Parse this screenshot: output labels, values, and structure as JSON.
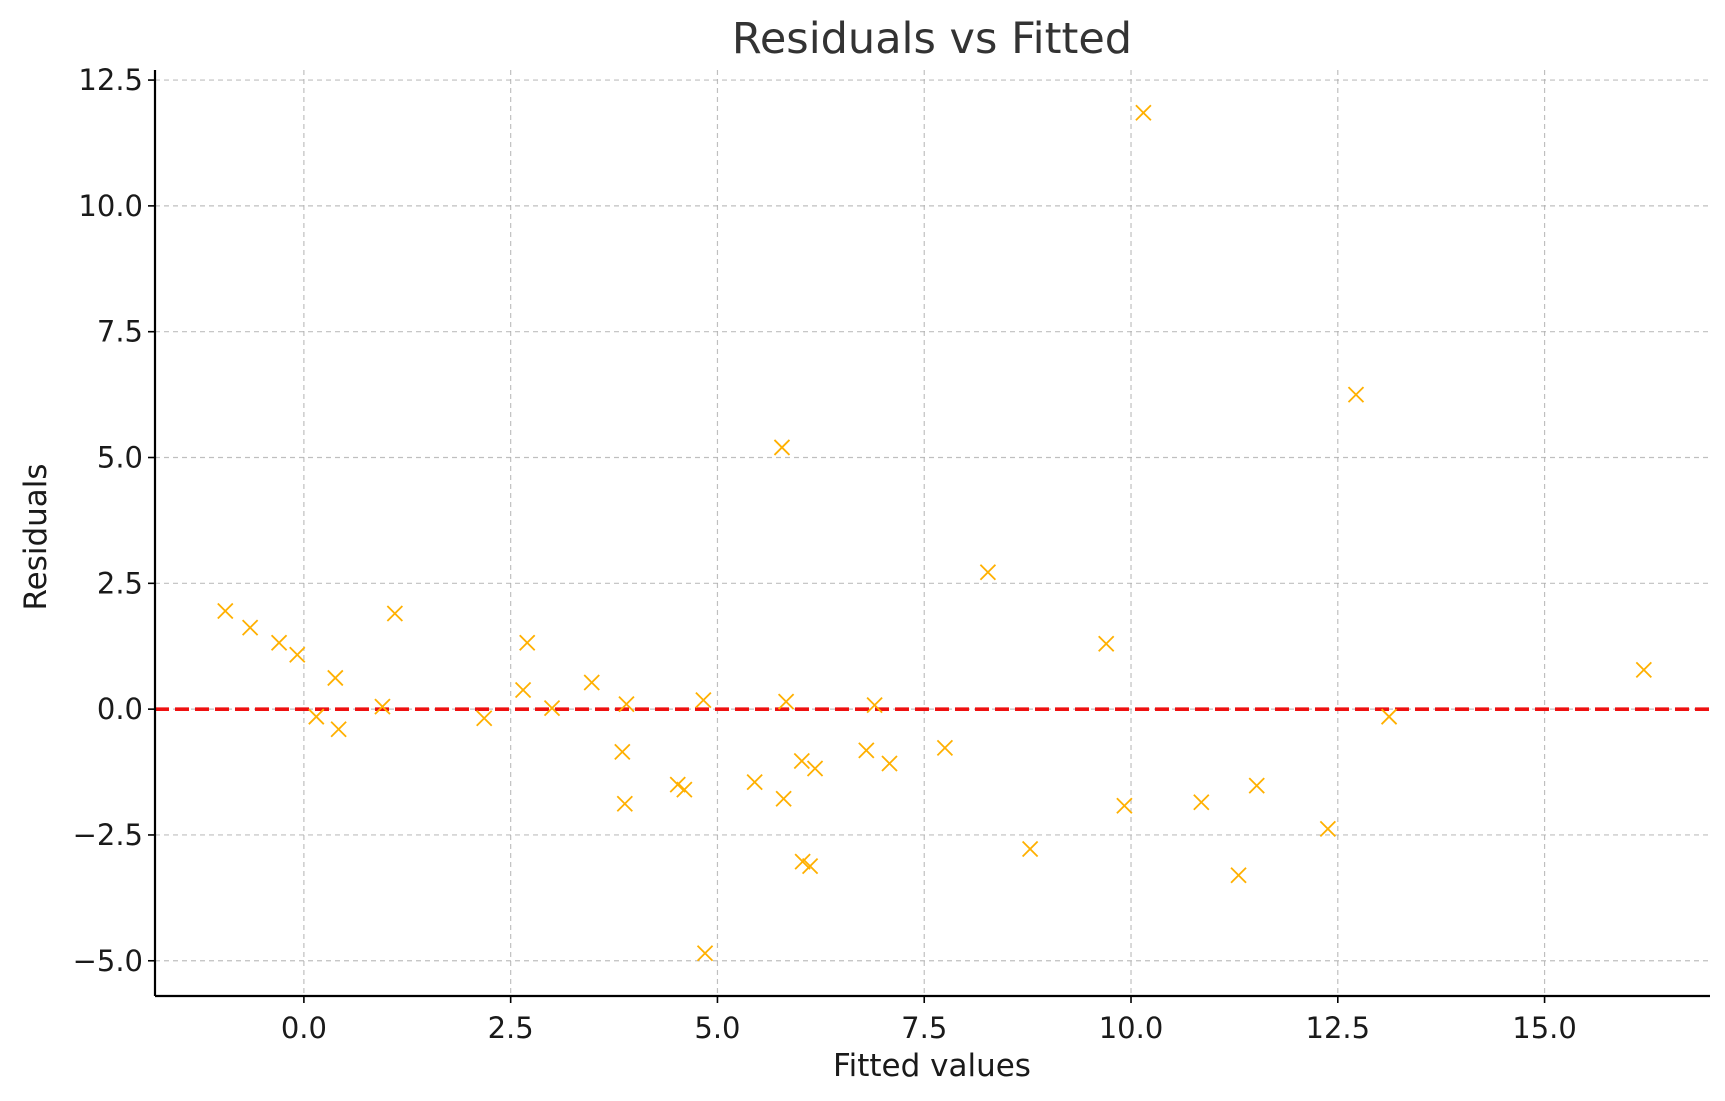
{
  "chart_data": {
    "type": "scatter",
    "title": "Residuals vs Fitted",
    "xlabel": "Fitted values",
    "ylabel": "Residuals",
    "xlim": [
      -1.8,
      17
    ],
    "ylim": [
      -5.7,
      12.7
    ],
    "xticks": [
      0.0,
      2.5,
      5.0,
      7.5,
      10.0,
      12.5,
      15.0
    ],
    "yticks": [
      -5.0,
      -2.5,
      0.0,
      2.5,
      5.0,
      7.5,
      10.0,
      12.5
    ],
    "xtick_labels": [
      "0.0",
      "2.5",
      "5.0",
      "7.5",
      "10.0",
      "12.5",
      "15.0"
    ],
    "ytick_labels": [
      "−5.0",
      "−2.5",
      "0.0",
      "2.5",
      "5.0",
      "7.5",
      "10.0",
      "12.5"
    ],
    "grid": true,
    "marker": "x",
    "marker_color": "#ffb000",
    "reference_line": {
      "y": 0,
      "color": "#ee1111",
      "style": "dashed"
    },
    "points": [
      {
        "x": -0.95,
        "y": 1.95
      },
      {
        "x": -0.65,
        "y": 1.62
      },
      {
        "x": -0.3,
        "y": 1.32
      },
      {
        "x": -0.08,
        "y": 1.08
      },
      {
        "x": 0.15,
        "y": -0.15
      },
      {
        "x": 0.38,
        "y": 0.62
      },
      {
        "x": 0.42,
        "y": -0.4
      },
      {
        "x": 0.95,
        "y": 0.05
      },
      {
        "x": 1.1,
        "y": 1.9
      },
      {
        "x": 2.18,
        "y": -0.18
      },
      {
        "x": 2.65,
        "y": 0.38
      },
      {
        "x": 2.7,
        "y": 1.32
      },
      {
        "x": 3.0,
        "y": 0.02
      },
      {
        "x": 3.48,
        "y": 0.53
      },
      {
        "x": 3.85,
        "y": -0.85
      },
      {
        "x": 3.88,
        "y": -1.88
      },
      {
        "x": 3.9,
        "y": 0.1
      },
      {
        "x": 4.52,
        "y": -1.5
      },
      {
        "x": 4.6,
        "y": -1.6
      },
      {
        "x": 4.83,
        "y": 0.18
      },
      {
        "x": 4.85,
        "y": -4.85
      },
      {
        "x": 5.45,
        "y": -1.45
      },
      {
        "x": 5.78,
        "y": 5.2
      },
      {
        "x": 5.8,
        "y": -1.78
      },
      {
        "x": 5.83,
        "y": 0.15
      },
      {
        "x": 6.02,
        "y": -1.03
      },
      {
        "x": 6.03,
        "y": -3.03
      },
      {
        "x": 6.12,
        "y": -3.12
      },
      {
        "x": 6.18,
        "y": -1.18
      },
      {
        "x": 6.8,
        "y": -0.82
      },
      {
        "x": 6.9,
        "y": 0.08
      },
      {
        "x": 7.08,
        "y": -1.08
      },
      {
        "x": 7.75,
        "y": -0.77
      },
      {
        "x": 8.27,
        "y": 2.72
      },
      {
        "x": 8.78,
        "y": -2.78
      },
      {
        "x": 9.7,
        "y": 1.3
      },
      {
        "x": 9.92,
        "y": -1.92
      },
      {
        "x": 10.15,
        "y": 11.85
      },
      {
        "x": 10.85,
        "y": -1.85
      },
      {
        "x": 11.3,
        "y": -3.3
      },
      {
        "x": 11.52,
        "y": -1.52
      },
      {
        "x": 12.38,
        "y": -2.38
      },
      {
        "x": 12.72,
        "y": 6.25
      },
      {
        "x": 13.12,
        "y": -0.15
      },
      {
        "x": 16.2,
        "y": 0.78
      }
    ]
  }
}
